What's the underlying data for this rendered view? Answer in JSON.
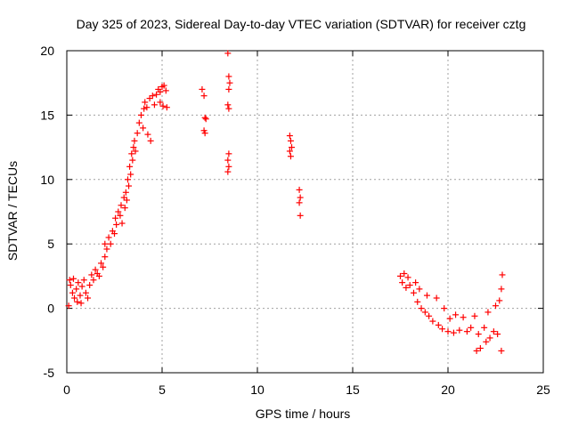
{
  "chart_data": {
    "type": "scatter",
    "title": "Day 325 of 2023, Sidereal Day-to-day VTEC variation (SDTVAR) for receiver cztg",
    "xlabel": "GPS time / hours",
    "ylabel": "SDTVAR / TECUs",
    "xlim": [
      0,
      25
    ],
    "ylim": [
      -5,
      20
    ],
    "xticks": [
      0,
      5,
      10,
      15,
      20,
      25
    ],
    "yticks": [
      -5,
      0,
      5,
      10,
      15,
      20
    ],
    "grid": true,
    "marker": "+",
    "color": "#ff0000",
    "series": [
      {
        "name": "SDTVAR",
        "points": [
          [
            0.1,
            0.2
          ],
          [
            0.15,
            2.2
          ],
          [
            0.2,
            1.8
          ],
          [
            0.3,
            1.2
          ],
          [
            0.35,
            2.3
          ],
          [
            0.4,
            0.8
          ],
          [
            0.5,
            1.5
          ],
          [
            0.55,
            0.5
          ],
          [
            0.6,
            2.0
          ],
          [
            0.7,
            1.0
          ],
          [
            0.75,
            0.4
          ],
          [
            0.8,
            1.7
          ],
          [
            0.9,
            2.2
          ],
          [
            1.0,
            1.2
          ],
          [
            1.1,
            0.8
          ],
          [
            1.2,
            1.8
          ],
          [
            1.3,
            2.6
          ],
          [
            1.4,
            2.2
          ],
          [
            1.5,
            3.0
          ],
          [
            1.6,
            2.7
          ],
          [
            1.7,
            2.5
          ],
          [
            1.8,
            3.5
          ],
          [
            1.9,
            3.2
          ],
          [
            2.0,
            4.0
          ],
          [
            2.0,
            5.0
          ],
          [
            2.1,
            4.6
          ],
          [
            2.2,
            5.5
          ],
          [
            2.3,
            5.0
          ],
          [
            2.4,
            6.0
          ],
          [
            2.5,
            5.8
          ],
          [
            2.55,
            7.0
          ],
          [
            2.6,
            6.5
          ],
          [
            2.7,
            7.5
          ],
          [
            2.8,
            7.2
          ],
          [
            2.85,
            8.0
          ],
          [
            2.9,
            6.6
          ],
          [
            3.0,
            8.6
          ],
          [
            3.05,
            7.8
          ],
          [
            3.1,
            9.0
          ],
          [
            3.15,
            8.4
          ],
          [
            3.2,
            10.0
          ],
          [
            3.25,
            9.5
          ],
          [
            3.3,
            11.0
          ],
          [
            3.35,
            10.4
          ],
          [
            3.4,
            12.0
          ],
          [
            3.45,
            11.5
          ],
          [
            3.5,
            12.5
          ],
          [
            3.55,
            13.0
          ],
          [
            3.6,
            12.2
          ],
          [
            3.7,
            13.6
          ],
          [
            3.8,
            14.4
          ],
          [
            3.9,
            15.0
          ],
          [
            4.0,
            14.0
          ],
          [
            4.05,
            15.5
          ],
          [
            4.1,
            16.0
          ],
          [
            4.2,
            15.6
          ],
          [
            4.25,
            13.5
          ],
          [
            4.35,
            16.3
          ],
          [
            4.4,
            13.0
          ],
          [
            4.5,
            16.5
          ],
          [
            4.6,
            15.8
          ],
          [
            4.7,
            16.6
          ],
          [
            4.8,
            17.0
          ],
          [
            4.9,
            16.8
          ],
          [
            5.0,
            17.2
          ],
          [
            5.1,
            17.3
          ],
          [
            5.2,
            16.9
          ],
          [
            4.9,
            16.0
          ],
          [
            5.05,
            15.7
          ],
          [
            5.25,
            15.6
          ],
          [
            7.1,
            17.0
          ],
          [
            7.2,
            16.5
          ],
          [
            7.25,
            14.8
          ],
          [
            7.3,
            14.7
          ],
          [
            7.2,
            13.8
          ],
          [
            7.25,
            13.6
          ],
          [
            8.45,
            19.8
          ],
          [
            8.5,
            18.0
          ],
          [
            8.55,
            17.5
          ],
          [
            8.5,
            17.0
          ],
          [
            8.45,
            15.8
          ],
          [
            8.5,
            15.5
          ],
          [
            8.5,
            12.0
          ],
          [
            8.45,
            11.5
          ],
          [
            8.5,
            11.0
          ],
          [
            8.45,
            10.6
          ],
          [
            11.7,
            13.4
          ],
          [
            11.75,
            13.0
          ],
          [
            11.7,
            12.2
          ],
          [
            11.75,
            11.8
          ],
          [
            11.8,
            12.5
          ],
          [
            12.2,
            9.2
          ],
          [
            12.25,
            8.6
          ],
          [
            12.2,
            8.2
          ],
          [
            12.25,
            7.2
          ],
          [
            17.5,
            2.5
          ],
          [
            17.6,
            2.0
          ],
          [
            17.7,
            2.7
          ],
          [
            17.8,
            1.6
          ],
          [
            17.9,
            2.4
          ],
          [
            18.0,
            1.8
          ],
          [
            18.2,
            1.2
          ],
          [
            18.3,
            2.0
          ],
          [
            18.4,
            0.5
          ],
          [
            18.5,
            1.5
          ],
          [
            18.6,
            0.0
          ],
          [
            18.8,
            -0.3
          ],
          [
            18.9,
            1.0
          ],
          [
            19.0,
            -0.6
          ],
          [
            19.2,
            -1.0
          ],
          [
            19.4,
            0.8
          ],
          [
            19.5,
            -1.3
          ],
          [
            19.7,
            -1.6
          ],
          [
            19.8,
            0.0
          ],
          [
            20.0,
            -1.8
          ],
          [
            20.1,
            -0.8
          ],
          [
            20.3,
            -1.9
          ],
          [
            20.4,
            -0.5
          ],
          [
            20.6,
            -1.7
          ],
          [
            20.8,
            -0.7
          ],
          [
            21.0,
            -1.8
          ],
          [
            21.2,
            -1.5
          ],
          [
            21.4,
            -0.6
          ],
          [
            21.5,
            -3.3
          ],
          [
            21.6,
            -2.0
          ],
          [
            21.7,
            -3.1
          ],
          [
            21.9,
            -1.5
          ],
          [
            22.0,
            -2.6
          ],
          [
            22.1,
            -0.3
          ],
          [
            22.2,
            -2.3
          ],
          [
            22.4,
            -1.8
          ],
          [
            22.5,
            0.2
          ],
          [
            22.6,
            -2.0
          ],
          [
            22.7,
            0.6
          ],
          [
            22.8,
            1.5
          ],
          [
            22.85,
            2.6
          ],
          [
            22.8,
            -3.3
          ]
        ]
      }
    ]
  }
}
